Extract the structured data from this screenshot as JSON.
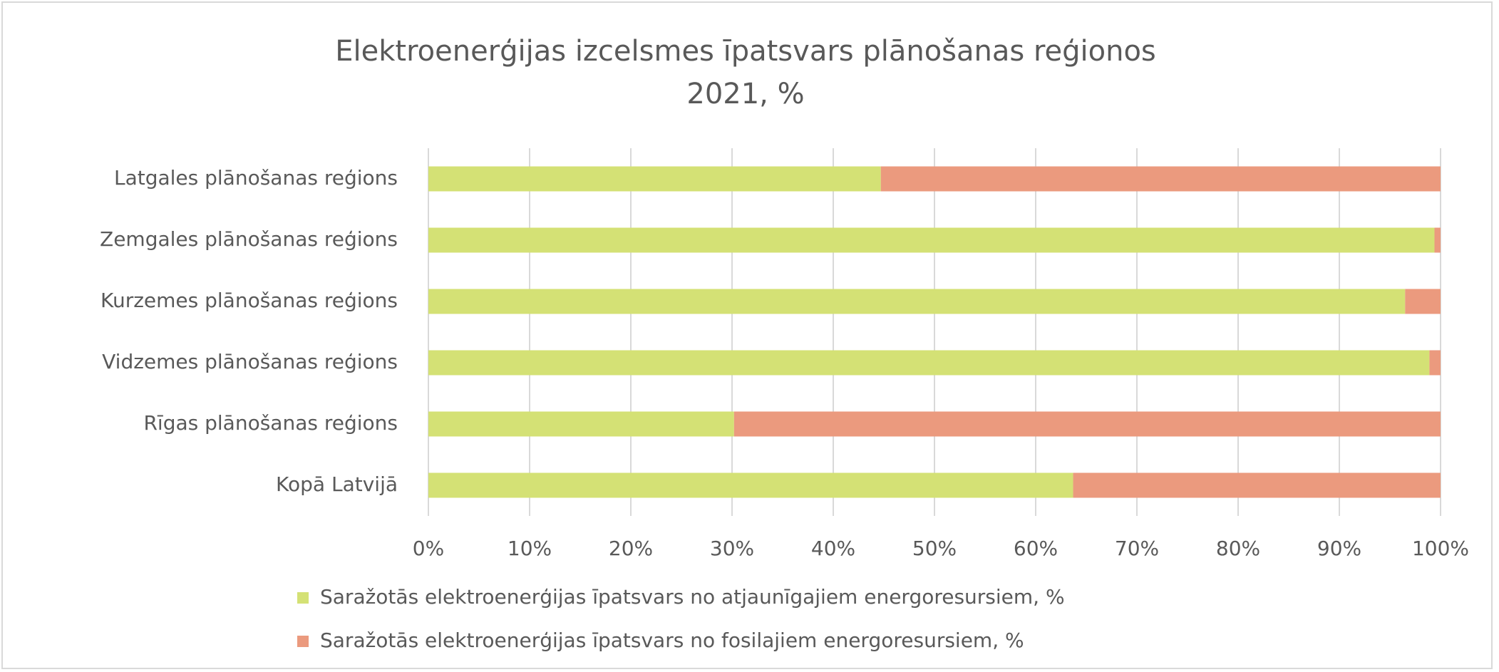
{
  "chart_data": {
    "type": "stacked_barh",
    "title": "Elektroenerģijas izcelsmes īpatsvars plānošanas reģionos",
    "subtitle": "2021, %",
    "categories": [
      "Latgales plānošanas reģions",
      "Zemgales plānošanas reģions",
      "Kurzemes plānošanas reģions",
      "Vidzemes plānošanas reģions",
      "Rīgas plānošanas reģions",
      "Kopā Latvijā"
    ],
    "series": [
      {
        "name": "Saražotās elektroenerģijas īpatsvars no atjaunīgajiem energoresursiem, %",
        "color": "#d4e175",
        "values": [
          44.7,
          99.4,
          96.5,
          98.9,
          30.2,
          63.7
        ]
      },
      {
        "name": "Saražotās  elektroenerģijas īpatsvars no fosilajiem energoresursiem, %",
        "color": "#eb9a7e",
        "values": [
          55.3,
          0.6,
          3.5,
          1.1,
          69.8,
          36.3
        ]
      }
    ],
    "xlim": [
      0,
      100
    ],
    "xticks": [
      {
        "value": 0,
        "label": "0%"
      },
      {
        "value": 10,
        "label": "10%"
      },
      {
        "value": 20,
        "label": "20%"
      },
      {
        "value": 30,
        "label": "30%"
      },
      {
        "value": 40,
        "label": "40%"
      },
      {
        "value": 50,
        "label": "50%"
      },
      {
        "value": 60,
        "label": "60%"
      },
      {
        "value": 70,
        "label": "70%"
      },
      {
        "value": 80,
        "label": "80%"
      },
      {
        "value": 90,
        "label": "90%"
      },
      {
        "value": 100,
        "label": "100%"
      }
    ],
    "grid": true,
    "legend": "bottom"
  }
}
